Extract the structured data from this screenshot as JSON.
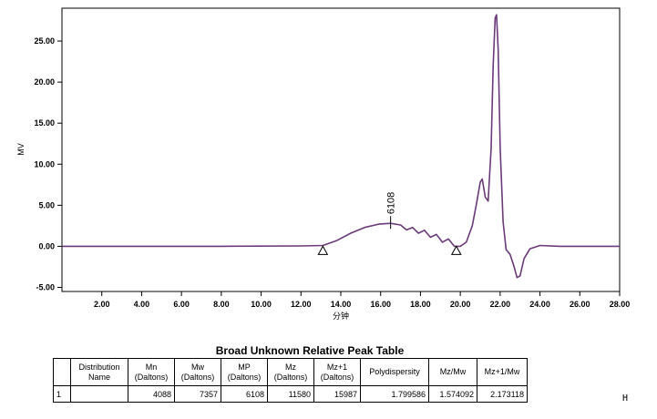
{
  "chart_data": {
    "type": "line",
    "xlabel": "分钟",
    "ylabel": "MV",
    "xlim": [
      0,
      28
    ],
    "ylim": [
      -5.5,
      29
    ],
    "x_ticks": [
      2,
      4,
      6,
      8,
      10,
      12,
      14,
      16,
      18,
      20,
      22,
      24,
      26,
      28
    ],
    "x_tick_labels": [
      "2.00",
      "4.00",
      "6.00",
      "8.00",
      "10.00",
      "12.00",
      "14.00",
      "16.00",
      "18.00",
      "20.00",
      "22.00",
      "24.00",
      "26.00",
      "28.00"
    ],
    "y_ticks": [
      -5,
      0,
      5,
      10,
      15,
      20,
      25
    ],
    "y_tick_labels": [
      "-5.00",
      "0.00",
      "5.00",
      "10.00",
      "15.00",
      "20.00",
      "25.00"
    ],
    "line_color": "#6b3a78",
    "series": [
      {
        "x": [
          0.0,
          8.0,
          12.0,
          13.1,
          13.8,
          14.5,
          15.2,
          15.9,
          16.5,
          17.0,
          17.3,
          17.6,
          17.9,
          18.2,
          18.5,
          18.8,
          19.1,
          19.4,
          19.7,
          20.0,
          20.3,
          20.6,
          20.8,
          21.0,
          21.1,
          21.25,
          21.4,
          21.55,
          21.65,
          21.75,
          21.82,
          21.9,
          22.0,
          22.15,
          22.3,
          22.5,
          22.7,
          22.85,
          23.0,
          23.2,
          23.5,
          24.0,
          25.0,
          28.0
        ],
        "y": [
          0.0,
          0.0,
          0.05,
          0.1,
          0.7,
          1.6,
          2.3,
          2.7,
          2.8,
          2.6,
          2.0,
          2.3,
          1.6,
          1.95,
          1.1,
          1.45,
          0.5,
          0.9,
          0.0,
          0.0,
          0.5,
          2.5,
          5.0,
          7.8,
          8.2,
          6.0,
          5.5,
          12.0,
          22.0,
          27.8,
          28.2,
          24.0,
          12.0,
          3.0,
          -0.4,
          -1.0,
          -2.5,
          -3.8,
          -3.6,
          -1.5,
          -0.3,
          0.1,
          0.0,
          0.0
        ]
      }
    ],
    "baseline_markers": [
      {
        "x": 13.1,
        "y": -0.1
      },
      {
        "x": 19.8,
        "y": -0.1
      }
    ],
    "peak_annotation": {
      "label": "6108",
      "x": 16.5,
      "y": 2.8
    }
  },
  "table": {
    "title": "Broad Unknown Relative Peak Table",
    "headers": [
      "",
      "Distribution Name",
      "Mn (Daltons)",
      "Mw (Daltons)",
      "MP (Daltons)",
      "Mz (Daltons)",
      "Mz+1 (Daltons)",
      "Polydispersity",
      "Mz/Mw",
      "Mz+1/Mw"
    ],
    "rows": [
      [
        "1",
        "",
        "4088",
        "7357",
        "6108",
        "11580",
        "15987",
        "1.799586",
        "1.574092",
        "2.173118"
      ]
    ]
  },
  "marker_text": "H"
}
